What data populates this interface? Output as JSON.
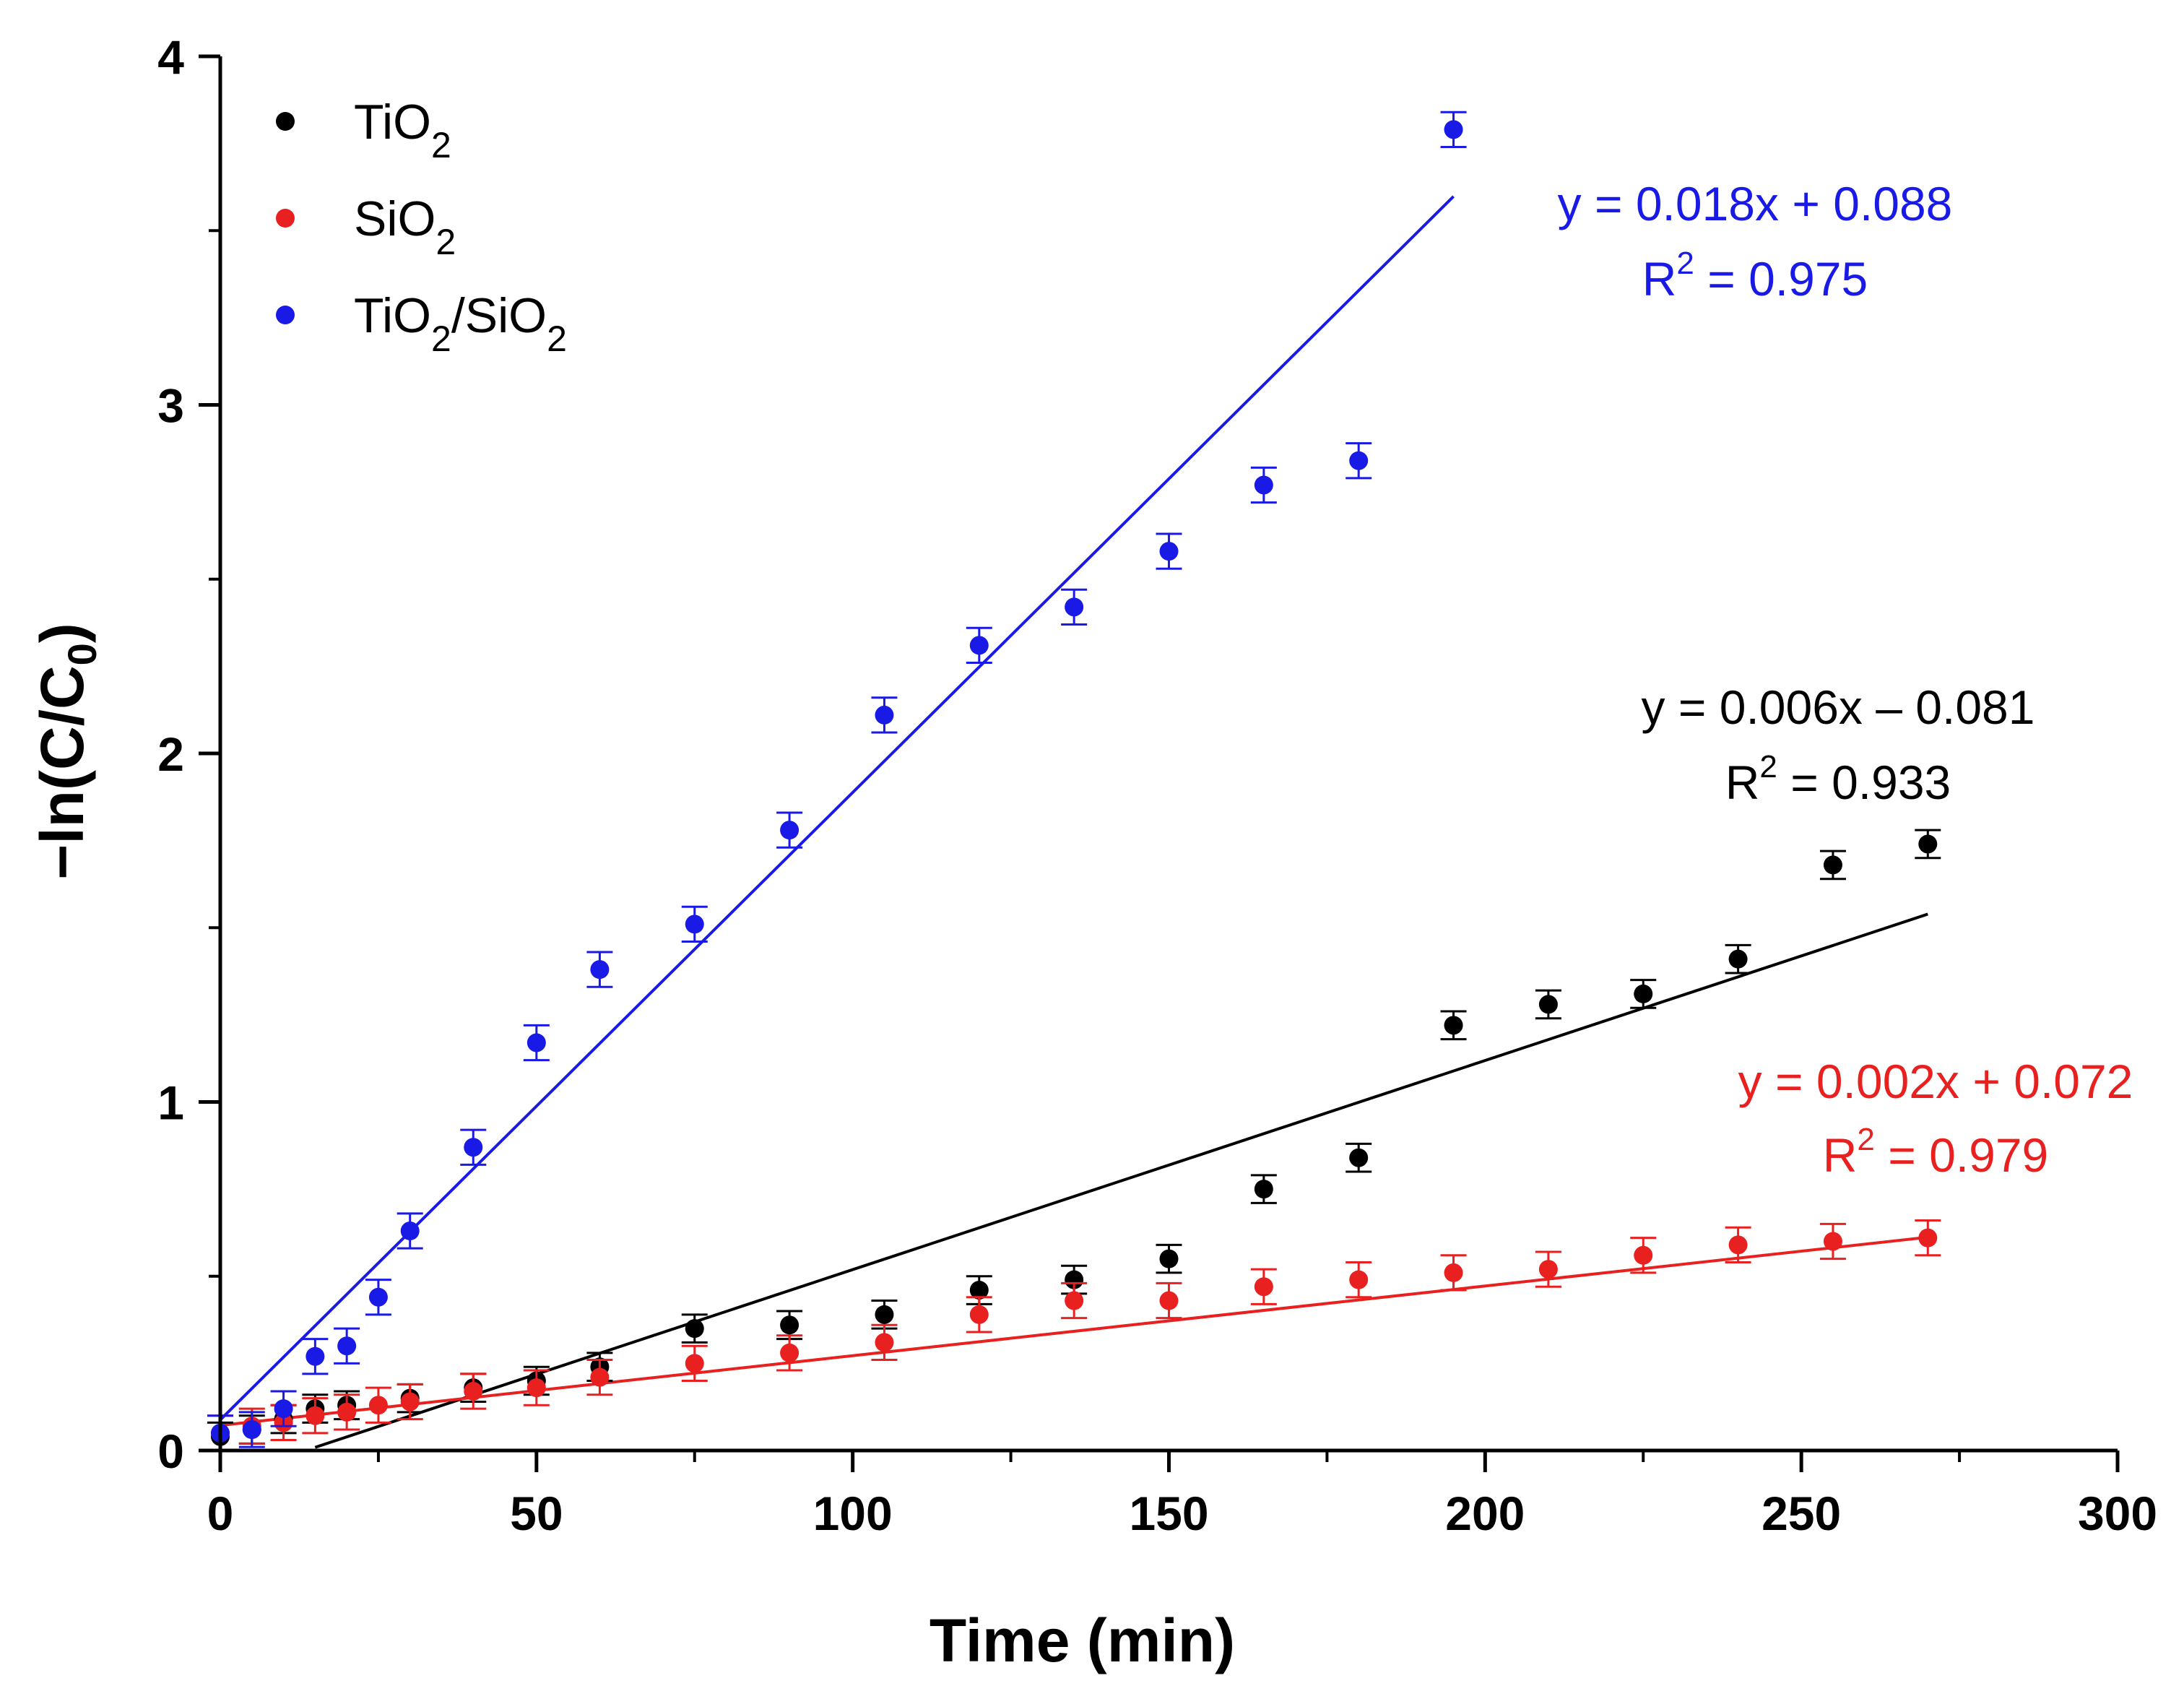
{
  "chart_data": {
    "type": "scatter",
    "title": "",
    "xlabel": "Time (min)",
    "ylabel_main": "−ln(C/C",
    "ylabel_sub": "0",
    "ylabel_close": ")",
    "xlim": [
      0,
      300
    ],
    "ylim": [
      0,
      4
    ],
    "x_ticks": [
      0,
      50,
      100,
      150,
      200,
      250,
      300
    ],
    "y_ticks": [
      0,
      1,
      2,
      3,
      4
    ],
    "x_tick_labels": [
      "0",
      "50",
      "100",
      "150",
      "200",
      "250",
      "300"
    ],
    "y_tick_labels": [
      "0",
      "1",
      "2",
      "3",
      "4"
    ],
    "legend_position": "top-left",
    "grid": false,
    "series": [
      {
        "name": "TiO2",
        "legend_parts": [
          "TiO",
          "2",
          ""
        ],
        "color": "#000000",
        "x": [
          0,
          5,
          10,
          15,
          20,
          30,
          40,
          50,
          60,
          75,
          90,
          105,
          120,
          135,
          150,
          165,
          180,
          195,
          210,
          225,
          240,
          255,
          270
        ],
        "y": [
          0.04,
          0.06,
          0.09,
          0.12,
          0.13,
          0.15,
          0.18,
          0.2,
          0.24,
          0.35,
          0.36,
          0.39,
          0.46,
          0.49,
          0.55,
          0.75,
          0.84,
          1.22,
          1.28,
          1.31,
          1.41,
          1.68,
          1.74
        ],
        "error": 0.04,
        "fit": {
          "slope": 0.006,
          "intercept": -0.081,
          "x_range": [
            15,
            270
          ]
        },
        "equation": "y = 0.006x – 0.081",
        "r2_label": "R",
        "r2_exp": "2",
        "r2_value": " = 0.933"
      },
      {
        "name": "SiO2",
        "legend_parts": [
          "SiO",
          "2",
          ""
        ],
        "color": "#e82020",
        "x": [
          0,
          5,
          10,
          15,
          20,
          25,
          30,
          40,
          50,
          60,
          75,
          90,
          105,
          120,
          135,
          150,
          165,
          180,
          195,
          210,
          225,
          240,
          255,
          270
        ],
        "y": [
          0.05,
          0.07,
          0.08,
          0.1,
          0.11,
          0.13,
          0.14,
          0.17,
          0.18,
          0.21,
          0.25,
          0.28,
          0.31,
          0.39,
          0.43,
          0.43,
          0.47,
          0.49,
          0.51,
          0.52,
          0.56,
          0.59,
          0.6,
          0.61
        ],
        "error": 0.05,
        "fit": {
          "slope": 0.002,
          "intercept": 0.072,
          "x_range": [
            0,
            270
          ]
        },
        "equation": "y = 0.002x + 0.072",
        "r2_label": "R",
        "r2_exp": "2",
        "r2_value": " = 0.979"
      },
      {
        "name": "TiO2/SiO2",
        "legend_parts": [
          "TiO",
          "2",
          "/SiO",
          "2"
        ],
        "color": "#1a1ae6",
        "x": [
          0,
          5,
          10,
          15,
          20,
          25,
          30,
          40,
          50,
          60,
          75,
          90,
          105,
          120,
          135,
          150,
          165,
          180,
          195
        ],
        "y": [
          0.05,
          0.06,
          0.12,
          0.27,
          0.3,
          0.44,
          0.63,
          0.87,
          1.17,
          1.38,
          1.51,
          1.78,
          2.11,
          2.31,
          2.42,
          2.58,
          2.77,
          2.84,
          3.79
        ],
        "error": 0.05,
        "fit": {
          "slope": 0.018,
          "intercept": 0.088,
          "x_range": [
            0,
            195
          ]
        },
        "equation": "y = 0.018x + 0.088",
        "r2_label": "R",
        "r2_exp": "2",
        "r2_value": " = 0.975"
      }
    ]
  }
}
